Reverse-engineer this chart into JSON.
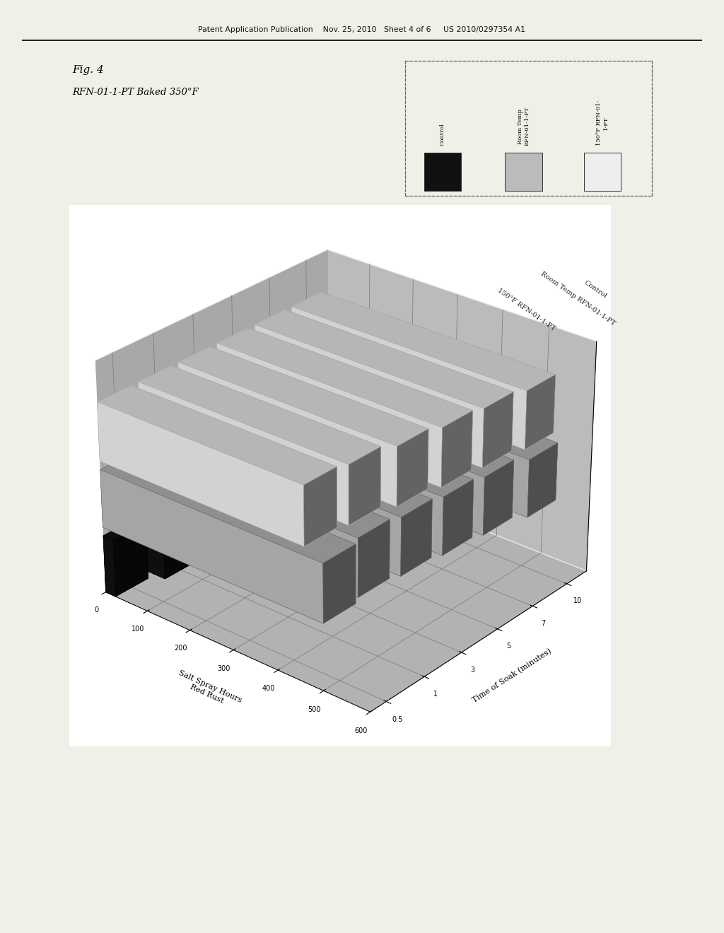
{
  "fig_label": "Fig. 4",
  "subtitle": "RFN-01-1-PT Baked 350°F",
  "header": "Patent Application Publication    Nov. 25, 2010   Sheet 4 of 6     US 2010/0297354 A1",
  "xlabel": "Salt Spray Hours\nRed Rust",
  "ylabel_rotated": "Time of Soak (minutes)",
  "series_labels": [
    "Control",
    "Room Temp\nRFN-01-1-PT",
    "150°F RFN-01-\n1-PT"
  ],
  "series_labels_axis": [
    "Control",
    "Room Temp RFN-01-1-PT",
    "150°F RFN-01-1-PT"
  ],
  "series_colors": [
    "#111111",
    "#bbbbbb",
    "#eeeeee"
  ],
  "series_edge": [
    "#000000",
    "#666666",
    "#aaaaaa"
  ],
  "soak_times": [
    0.5,
    1,
    3,
    5,
    7,
    10
  ],
  "values_control": [
    24,
    48,
    48,
    48,
    48,
    48
  ],
  "values_roomtemp": [
    500,
    490,
    500,
    510,
    520,
    540
  ],
  "values_150f": [
    460,
    470,
    490,
    505,
    515,
    530
  ],
  "x_max": 600,
  "x_ticks": [
    0,
    100,
    200,
    300,
    400,
    500,
    600
  ],
  "background": "#f0efe8",
  "chart_bg_floor": "#888888",
  "chart_bg_wall": "#aaaaaa",
  "elev": 28,
  "azim": -50
}
